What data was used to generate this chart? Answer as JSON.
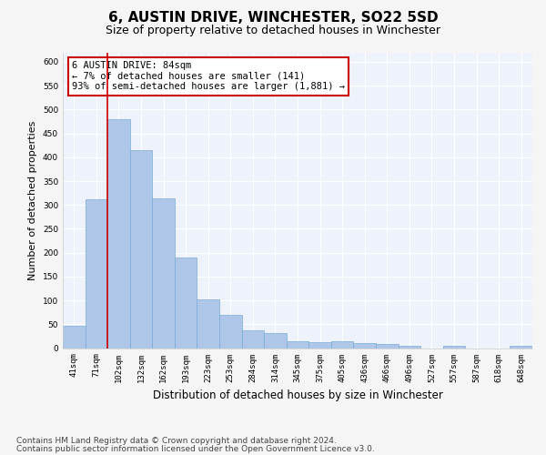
{
  "title": "6, AUSTIN DRIVE, WINCHESTER, SO22 5SD",
  "subtitle": "Size of property relative to detached houses in Winchester",
  "xlabel": "Distribution of detached houses by size in Winchester",
  "ylabel": "Number of detached properties",
  "categories": [
    "41sqm",
    "71sqm",
    "102sqm",
    "132sqm",
    "162sqm",
    "193sqm",
    "223sqm",
    "253sqm",
    "284sqm",
    "314sqm",
    "345sqm",
    "375sqm",
    "405sqm",
    "436sqm",
    "466sqm",
    "496sqm",
    "527sqm",
    "557sqm",
    "587sqm",
    "618sqm",
    "648sqm"
  ],
  "values": [
    46,
    311,
    480,
    415,
    313,
    190,
    103,
    70,
    38,
    32,
    14,
    12,
    15,
    11,
    9,
    5,
    0,
    5,
    0,
    0,
    5
  ],
  "bar_color": "#aec6e8",
  "bar_edge_color": "#7aadd4",
  "background_color": "#eef2fa",
  "grid_color": "#ffffff",
  "annotation_text": "6 AUSTIN DRIVE: 84sqm\n← 7% of detached houses are smaller (141)\n93% of semi-detached houses are larger (1,881) →",
  "annotation_box_color": "#ffffff",
  "annotation_box_edge_color": "#cc0000",
  "redline_x": 1.5,
  "ylim": [
    0,
    620
  ],
  "yticks": [
    0,
    50,
    100,
    150,
    200,
    250,
    300,
    350,
    400,
    450,
    500,
    550,
    600
  ],
  "footnote1": "Contains HM Land Registry data © Crown copyright and database right 2024.",
  "footnote2": "Contains public sector information licensed under the Open Government Licence v3.0.",
  "title_fontsize": 11,
  "subtitle_fontsize": 9,
  "xlabel_fontsize": 8.5,
  "ylabel_fontsize": 8,
  "tick_fontsize": 6.5,
  "annotation_fontsize": 7.5,
  "footnote_fontsize": 6.5
}
